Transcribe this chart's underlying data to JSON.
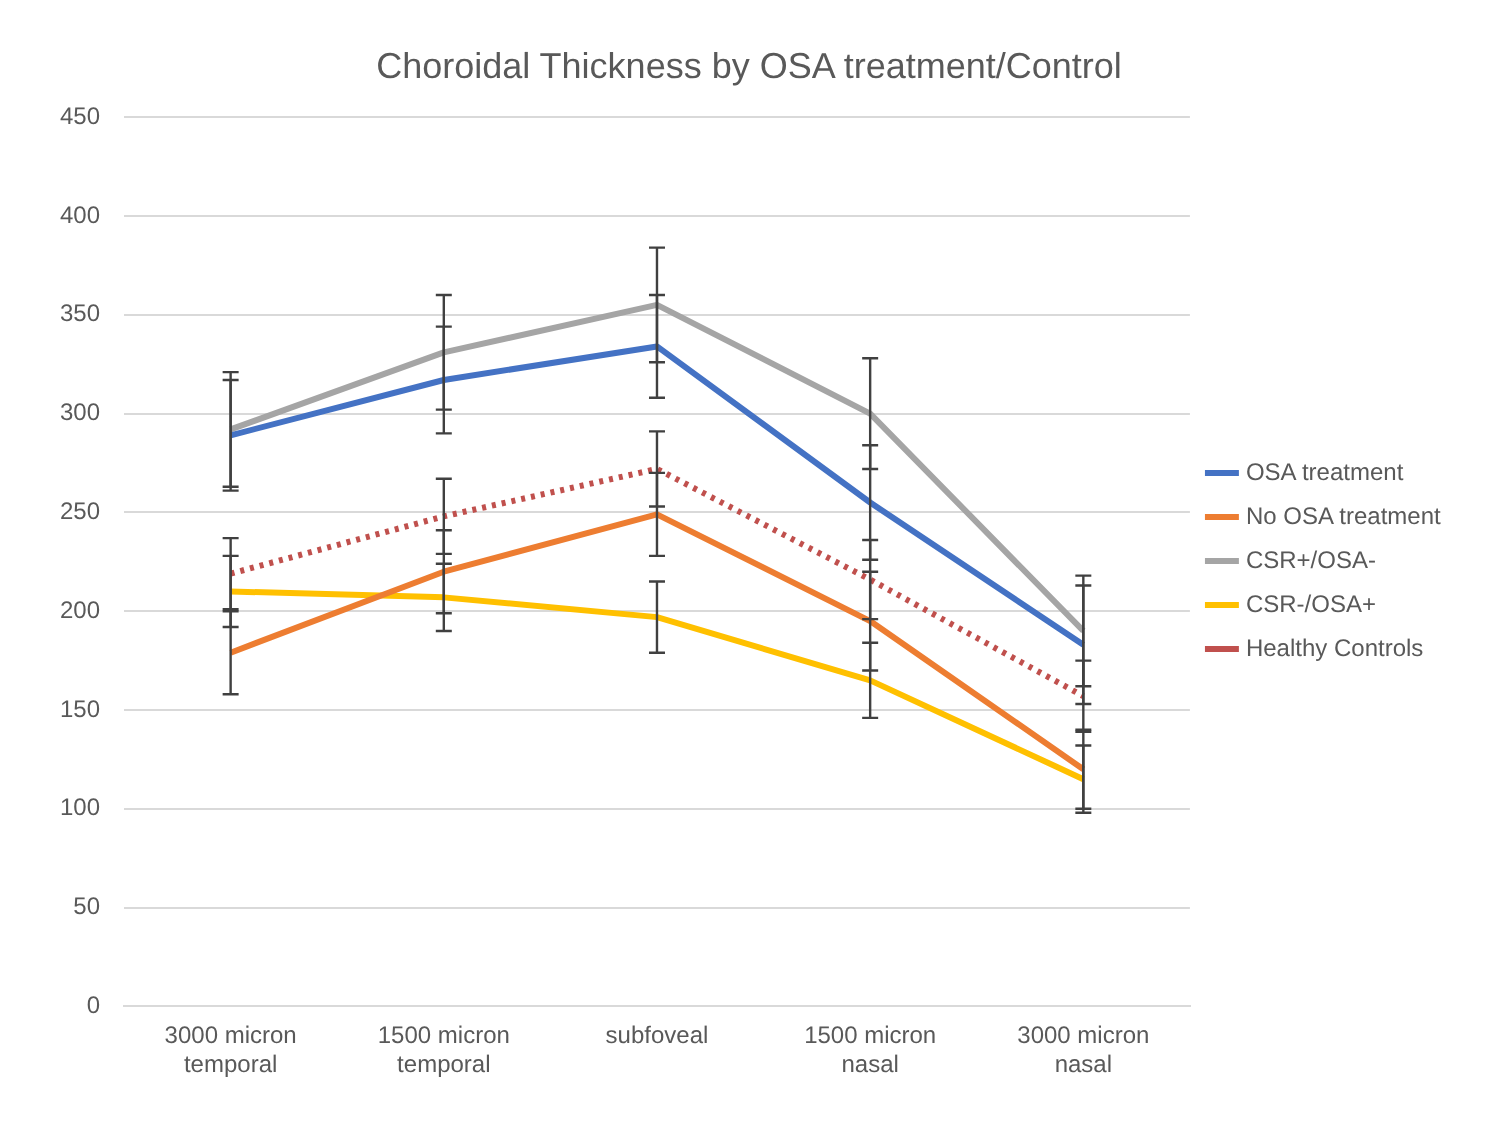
{
  "chart_data": {
    "type": "line",
    "title": "Choroidal Thickness by OSA treatment/Control",
    "categories": [
      "3000 micron temporal",
      "1500 micron temporal",
      "subfoveal",
      "1500 micron nasal",
      "3000 micron nasal"
    ],
    "series": [
      {
        "name": "OSA treatment",
        "color": "#4472c4",
        "values": [
          289,
          317,
          334,
          255,
          183
        ],
        "errors": [
          28,
          27,
          26,
          29,
          30
        ]
      },
      {
        "name": "No OSA treatment",
        "color": "#ed7d31",
        "values": [
          179,
          220,
          249,
          195,
          120
        ],
        "errors": [
          21,
          21,
          21,
          25,
          20
        ]
      },
      {
        "name": "CSR+/OSA-",
        "color": "#a5a5a5",
        "values": [
          292,
          331,
          355,
          300,
          190
        ],
        "errors": [
          29,
          29,
          29,
          28,
          28
        ]
      },
      {
        "name": "CSR-/OSA+",
        "color": "#ffc000",
        "values": [
          210,
          207,
          197,
          165,
          115
        ],
        "errors": [
          18,
          17,
          18,
          19,
          17
        ]
      },
      {
        "name": "Healthy Controls",
        "color": "#c0504d",
        "values": [
          219,
          248,
          272,
          216,
          157
        ],
        "errors": [
          18,
          19,
          19,
          20,
          18
        ],
        "line_style": "dotted"
      }
    ],
    "ylim": [
      0,
      450
    ],
    "yticks": [
      0,
      50,
      100,
      150,
      200,
      250,
      300,
      350,
      400,
      450
    ],
    "grid": "y",
    "legend": "right",
    "marker": "none"
  }
}
